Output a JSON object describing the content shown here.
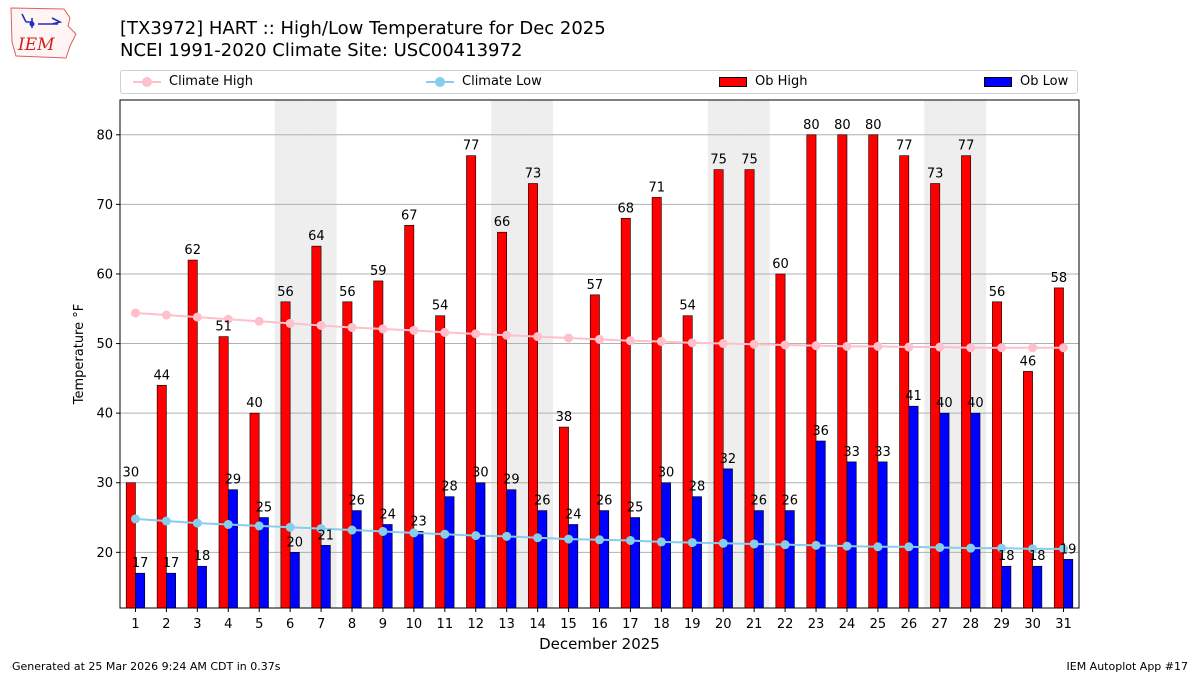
{
  "header": {
    "logo_text": "IEM",
    "title_line1": "[TX3972] HART :: High/Low Temperature for Dec 2025",
    "title_line2": "NCEI 1991-2020 Climate Site: USC00413972"
  },
  "legend": {
    "items": [
      {
        "label": "Climate High",
        "kind": "line",
        "color": "#ffc0cb"
      },
      {
        "label": "Climate Low",
        "kind": "line",
        "color": "#87ceeb"
      },
      {
        "label": "Ob High",
        "kind": "bar",
        "color": "#ff0000"
      },
      {
        "label": "Ob Low",
        "kind": "bar",
        "color": "#0000ff"
      }
    ]
  },
  "footer": {
    "left": "Generated at 25 Mar 2026 9:24 AM CDT in 0.37s",
    "right": "IEM Autoplot App #17"
  },
  "chart_data": {
    "type": "bar",
    "xlabel": "December 2025",
    "ylabel": "Temperature °F",
    "ylim": [
      12,
      85
    ],
    "yticks": [
      20,
      30,
      40,
      50,
      60,
      70,
      80
    ],
    "grid": "horizontal",
    "legend_position": "top",
    "weekend_shading_days": [
      6,
      7,
      13,
      14,
      20,
      21,
      27,
      28
    ],
    "categories": [
      "1",
      "2",
      "3",
      "4",
      "5",
      "6",
      "7",
      "8",
      "9",
      "10",
      "11",
      "12",
      "13",
      "14",
      "15",
      "16",
      "17",
      "18",
      "19",
      "20",
      "21",
      "22",
      "23",
      "24",
      "25",
      "26",
      "27",
      "28",
      "29",
      "30",
      "31"
    ],
    "series": [
      {
        "name": "Ob High",
        "kind": "bar",
        "color": "#ff0000",
        "values": [
          30,
          44,
          62,
          51,
          40,
          56,
          64,
          56,
          59,
          67,
          54,
          77,
          66,
          73,
          38,
          57,
          68,
          71,
          54,
          75,
          75,
          60,
          80,
          80,
          80,
          77,
          73,
          77,
          56,
          46,
          58
        ]
      },
      {
        "name": "Ob Low",
        "kind": "bar",
        "color": "#0000ff",
        "values": [
          17,
          17,
          18,
          29,
          25,
          20,
          21,
          26,
          24,
          23,
          28,
          30,
          29,
          26,
          24,
          26,
          25,
          30,
          28,
          32,
          26,
          26,
          36,
          33,
          33,
          41,
          40,
          40,
          18,
          18,
          19
        ]
      },
      {
        "name": "Climate High",
        "kind": "line",
        "color": "#ffc0cb",
        "values": [
          54.4,
          54.1,
          53.8,
          53.5,
          53.2,
          52.9,
          52.6,
          52.3,
          52.1,
          51.9,
          51.6,
          51.4,
          51.2,
          51.0,
          50.8,
          50.6,
          50.4,
          50.3,
          50.1,
          50.0,
          49.9,
          49.8,
          49.7,
          49.6,
          49.6,
          49.5,
          49.5,
          49.4,
          49.4,
          49.4,
          49.4
        ]
      },
      {
        "name": "Climate Low",
        "kind": "line",
        "color": "#87ceeb",
        "values": [
          24.8,
          24.5,
          24.2,
          24.0,
          23.8,
          23.6,
          23.4,
          23.2,
          23.0,
          22.8,
          22.6,
          22.4,
          22.3,
          22.1,
          21.9,
          21.8,
          21.7,
          21.5,
          21.4,
          21.3,
          21.2,
          21.1,
          21.0,
          20.9,
          20.8,
          20.8,
          20.7,
          20.6,
          20.6,
          20.5,
          20.5
        ]
      }
    ]
  }
}
